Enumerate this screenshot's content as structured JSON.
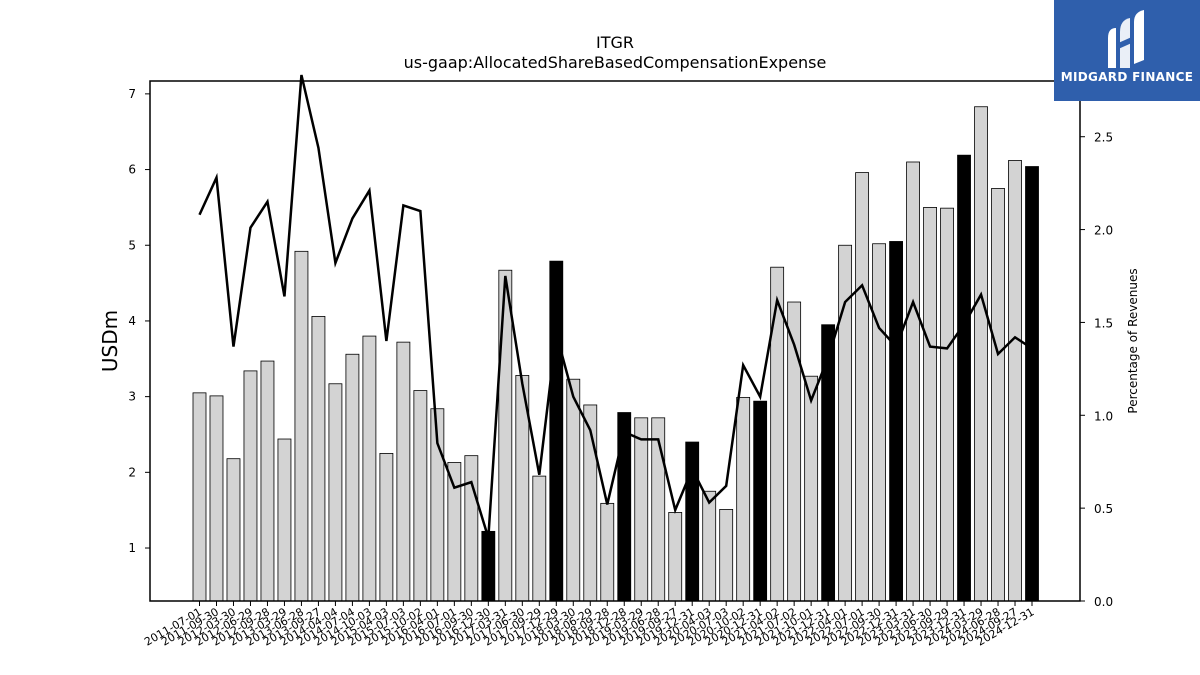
{
  "chart_data": {
    "type": "bar",
    "title": "ITGR",
    "subtitle": "us-gaap:AllocatedShareBasedCompensationExpense",
    "ylabel": "USDm",
    "y2label": "Percentage of Revenues",
    "ylim": [
      0.3,
      7.17
    ],
    "y2lim": [
      0.0,
      2.8
    ],
    "yticks": [
      1,
      2,
      3,
      4,
      5,
      6,
      7
    ],
    "y2ticks": [
      0.0,
      0.5,
      1.0,
      1.5,
      2.0,
      2.5
    ],
    "categories": [
      "2011-07-01",
      "2011-09-30",
      "2012-03-30",
      "2012-06-29",
      "2012-09-28",
      "2013-03-29",
      "2013-06-28",
      "2013-09-27",
      "2014-04-04",
      "2014-07-04",
      "2014-10-03",
      "2015-04-03",
      "2015-07-03",
      "2015-10-02",
      "2016-04-01",
      "2016-07-01",
      "2016-09-30",
      "2016-12-30",
      "2017-03-31",
      "2017-06-30",
      "2017-09-29",
      "2017-12-29",
      "2018-03-30",
      "2018-06-29",
      "2018-09-28",
      "2018-12-28",
      "2019-03-29",
      "2019-06-28",
      "2019-09-27",
      "2019-12-31",
      "2020-04-03",
      "2020-07-03",
      "2020-10-02",
      "2020-12-31",
      "2021-04-02",
      "2021-07-02",
      "2021-10-01",
      "2021-12-31",
      "2022-04-01",
      "2022-07-01",
      "2022-09-30",
      "2022-12-31",
      "2023-03-31",
      "2023-06-30",
      "2023-09-29",
      "2023-12-31",
      "2024-03-29",
      "2024-06-28",
      "2024-09-27",
      "2024-12-31"
    ],
    "series": [
      {
        "type": "bar",
        "values": [
          3.05,
          3.01,
          2.18,
          3.34,
          3.47,
          2.44,
          4.92,
          4.06,
          3.17,
          3.56,
          3.8,
          2.25,
          3.72,
          3.08,
          2.84,
          2.13,
          2.22,
          1.22,
          4.67,
          3.28,
          1.95,
          4.79,
          3.23,
          2.89,
          1.59,
          2.79,
          2.72,
          2.72,
          1.47,
          2.4,
          1.75,
          1.51,
          2.99,
          2.94,
          4.71,
          4.25,
          3.27,
          3.95,
          5.0,
          5.96,
          5.02,
          5.05,
          6.1,
          5.5,
          5.49,
          6.19,
          6.83,
          5.75,
          6.12,
          6.04
        ],
        "highlight": [
          false,
          false,
          false,
          false,
          false,
          false,
          false,
          false,
          false,
          false,
          false,
          false,
          false,
          false,
          false,
          false,
          false,
          true,
          false,
          false,
          false,
          true,
          false,
          false,
          false,
          true,
          false,
          false,
          false,
          true,
          false,
          false,
          false,
          true,
          false,
          false,
          false,
          true,
          false,
          false,
          false,
          true,
          false,
          false,
          false,
          true,
          false,
          false,
          false,
          true
        ],
        "colors": {
          "normal": "#d3d3d3",
          "highlight": "#000000",
          "edge": "#000000"
        }
      },
      {
        "type": "line",
        "axis": "right",
        "values": [
          2.08,
          2.28,
          1.37,
          2.01,
          2.15,
          1.64,
          2.86,
          2.44,
          1.82,
          2.06,
          2.21,
          1.4,
          2.13,
          2.1,
          0.85,
          0.61,
          0.64,
          0.34,
          1.75,
          1.17,
          0.68,
          1.44,
          1.1,
          0.92,
          0.52,
          0.91,
          0.87,
          0.87,
          0.49,
          0.71,
          0.53,
          0.62,
          1.27,
          1.1,
          1.62,
          1.38,
          1.08,
          1.31,
          1.61,
          1.7,
          1.47,
          1.37,
          1.61,
          1.37,
          1.36,
          1.49,
          1.65,
          1.33,
          1.42,
          1.36
        ],
        "color": "#000000"
      }
    ]
  },
  "logo": {
    "text": "MIDGARD FINANCE",
    "background": "#2f5fac"
  }
}
